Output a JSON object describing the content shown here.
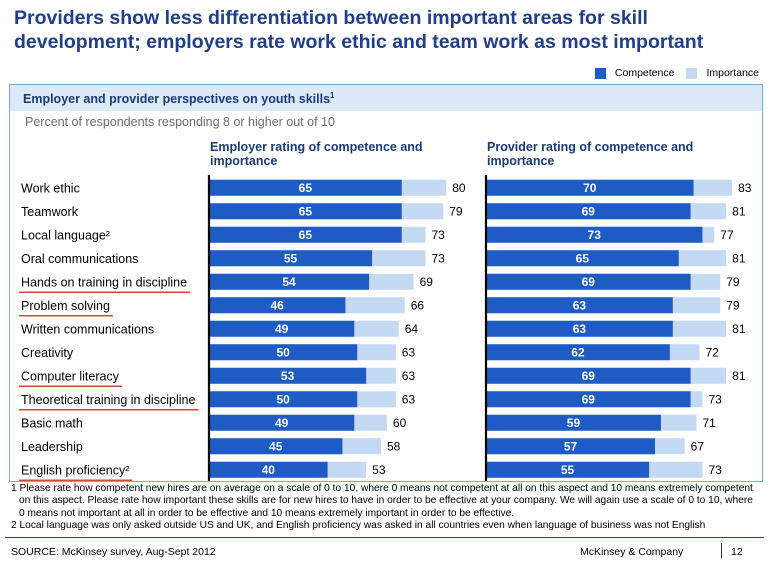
{
  "title": "Providers show less differentiation between important areas for skill development; employers rate work ethic and team work as most important",
  "legend": {
    "competence": "Competence",
    "importance": "Importance"
  },
  "colors": {
    "competence": "#1f5bc4",
    "importance": "#c4d9f2",
    "underline": "#d9433a",
    "header_bg": "#dce9f7",
    "title": "#1f3e8c"
  },
  "panel": {
    "title": "Employer and provider perspectives on youth skills",
    "title_sup": "1",
    "subtitle": "Percent of respondents responding 8 or higher out of 10"
  },
  "chart_data": {
    "type": "bar",
    "orientation": "horizontal",
    "categories": [
      "Work ethic",
      "Teamwork",
      "Local language²",
      "Oral communications",
      "Hands on training in discipline",
      "Problem solving",
      "Written communications",
      "Creativity",
      "Computer literacy",
      "Theoretical training in discipline",
      "Basic math",
      "Leadership",
      "English proficiency²"
    ],
    "underlined": [
      false,
      false,
      false,
      false,
      true,
      true,
      false,
      false,
      true,
      true,
      false,
      false,
      true
    ],
    "panels": [
      {
        "title": "Employer rating of competence and importance",
        "series": [
          {
            "name": "Competence",
            "values": [
              65,
              65,
              65,
              55,
              54,
              46,
              49,
              50,
              53,
              50,
              49,
              45,
              40
            ]
          },
          {
            "name": "Importance",
            "values": [
              80,
              79,
              73,
              73,
              69,
              66,
              64,
              63,
              63,
              63,
              60,
              58,
              53
            ]
          }
        ]
      },
      {
        "title": "Provider rating of competence and importance",
        "series": [
          {
            "name": "Competence",
            "values": [
              70,
              69,
              73,
              65,
              69,
              63,
              63,
              62,
              69,
              69,
              59,
              57,
              55
            ]
          },
          {
            "name": "Importance",
            "values": [
              83,
              81,
              77,
              81,
              79,
              79,
              81,
              72,
              81,
              73,
              71,
              67,
              73
            ]
          }
        ]
      }
    ]
  },
  "footnotes": [
    "1 Please rate how competent new hires are on average on a scale of 0 to 10, where 0 means not competent at all on this aspect and 10 means extremely competent on this aspect. Please rate how important these skills are for new hires to have in order to be effective at your company. We will again use a scale of 0 to 10, where 0 means not important at all in order to be effective and 10 means extremely important in order to be effective.",
    "2 Local language was only asked outside US and UK, and English proficiency was asked in all countries even when language of business was not English"
  ],
  "footer": {
    "source": "SOURCE: McKinsey survey, Aug-Sept 2012",
    "brand": "McKinsey & Company",
    "page": "12"
  }
}
